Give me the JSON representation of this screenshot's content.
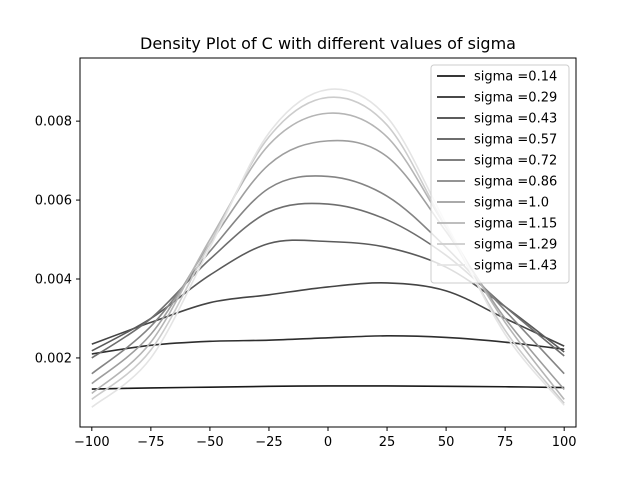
{
  "chart_data": {
    "type": "line",
    "title": "Density Plot of C with different values of sigma",
    "xlabel": "",
    "ylabel": "",
    "xlim": [
      -105,
      105
    ],
    "ylim": [
      0.00025,
      0.0096
    ],
    "x": [
      -100,
      -75,
      -50,
      -25,
      0,
      25,
      50,
      75,
      100
    ],
    "xticks": [
      -100,
      -75,
      -50,
      -25,
      0,
      25,
      50,
      75,
      100
    ],
    "xtick_labels": [
      "−100",
      "−75",
      "−50",
      "−25",
      "0",
      "25",
      "50",
      "75",
      "100"
    ],
    "yticks": [
      0.002,
      0.004,
      0.006,
      0.008
    ],
    "ytick_labels": [
      "0.002",
      "0.004",
      "0.006",
      "0.008"
    ],
    "grid": false,
    "legend_position": "top-right",
    "series": [
      {
        "name": "sigma =0.14",
        "color": "#1a1a1a",
        "values": [
          0.00121,
          0.00124,
          0.00126,
          0.00128,
          0.00129,
          0.00129,
          0.00128,
          0.00127,
          0.00125
        ]
      },
      {
        "name": "sigma =0.29",
        "color": "#2e2e2e",
        "values": [
          0.0021,
          0.00232,
          0.00242,
          0.00245,
          0.00251,
          0.00256,
          0.00252,
          0.0024,
          0.00222
        ]
      },
      {
        "name": "sigma =0.43",
        "color": "#444444",
        "values": [
          0.00235,
          0.0029,
          0.0034,
          0.0036,
          0.0038,
          0.0039,
          0.0037,
          0.003,
          0.0023
        ]
      },
      {
        "name": "sigma =0.57",
        "color": "#5a5a5a",
        "values": [
          0.00218,
          0.003,
          0.0041,
          0.0049,
          0.00495,
          0.0048,
          0.0043,
          0.0033,
          0.00215
        ]
      },
      {
        "name": "sigma =0.72",
        "color": "#6e6e6e",
        "values": [
          0.002,
          0.003,
          0.0045,
          0.0057,
          0.0059,
          0.0055,
          0.0046,
          0.0033,
          0.00205
        ]
      },
      {
        "name": "sigma =0.86",
        "color": "#848484",
        "values": [
          0.0016,
          0.0028,
          0.0047,
          0.0063,
          0.0066,
          0.0061,
          0.0048,
          0.0032,
          0.0016
        ]
      },
      {
        "name": "sigma =1.0",
        "color": "#9e9e9e",
        "values": [
          0.00135,
          0.0026,
          0.0049,
          0.0069,
          0.0075,
          0.0071,
          0.0052,
          0.003,
          0.0012
        ]
      },
      {
        "name": "sigma =1.15",
        "color": "#b5b5b5",
        "values": [
          0.0011,
          0.0024,
          0.005,
          0.0074,
          0.0082,
          0.0076,
          0.0053,
          0.0029,
          0.00095
        ]
      },
      {
        "name": "sigma =1.29",
        "color": "#cccccc",
        "values": [
          0.00095,
          0.0022,
          0.0049,
          0.0076,
          0.0086,
          0.0079,
          0.0053,
          0.0027,
          0.00085
        ]
      },
      {
        "name": "sigma =1.43",
        "color": "#e4e4e4",
        "values": [
          0.00075,
          0.002,
          0.0048,
          0.0077,
          0.0088,
          0.0081,
          0.0054,
          0.0026,
          0.0008
        ]
      }
    ]
  }
}
